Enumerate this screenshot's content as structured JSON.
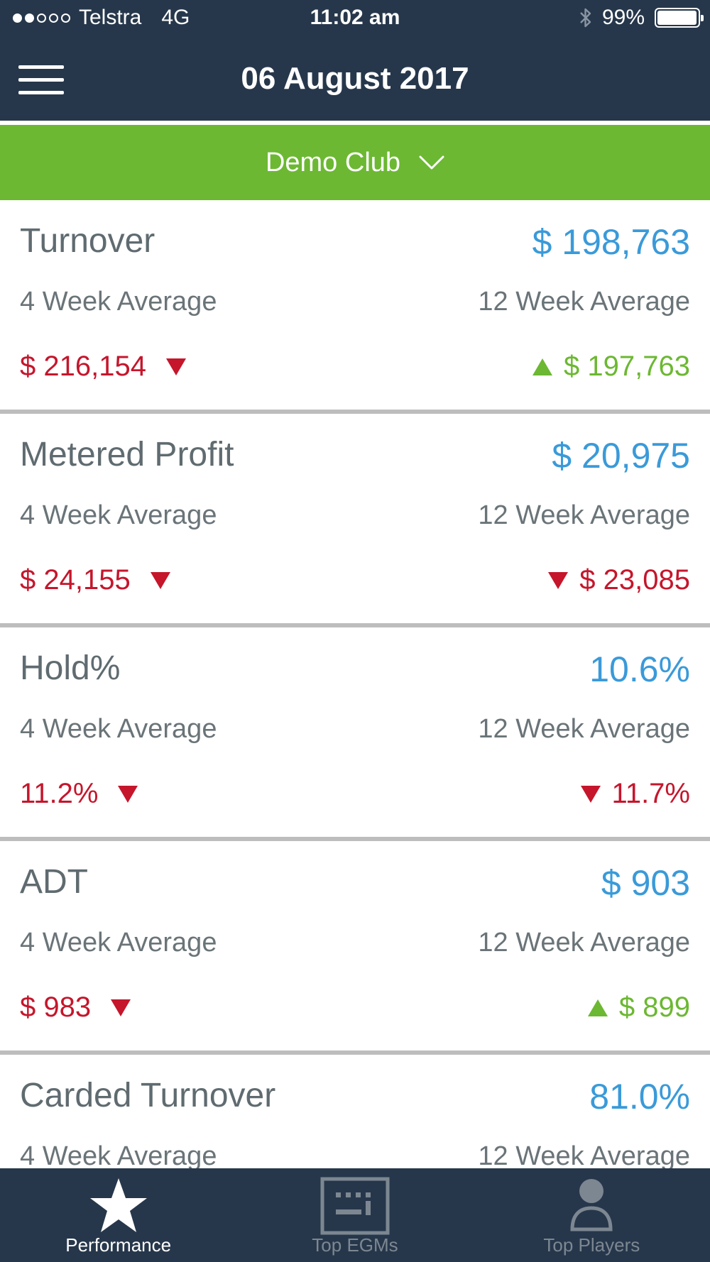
{
  "status_bar": {
    "carrier": "Telstra",
    "network": "4G",
    "time": "11:02 am",
    "battery": "99%",
    "battery_level": 0.99,
    "signal_bars": 2,
    "signal_total": 5
  },
  "nav": {
    "title": "06 August 2017"
  },
  "club_selector": {
    "label": "Demo Club"
  },
  "colors": {
    "header": "#27374b",
    "accent_green": "#6cb832",
    "value_blue": "#3a9ad9",
    "down_red": "#c5162c",
    "up_green": "#6cb832"
  },
  "metrics": [
    {
      "title": "Turnover",
      "value": "$ 198,763",
      "avg4_label": "4 Week Average",
      "avg4_value": "$ 216,154",
      "avg4_trend": "down",
      "avg12_label": "12 Week Average",
      "avg12_value": "$ 197,763",
      "avg12_trend": "up"
    },
    {
      "title": "Metered Profit",
      "value": "$ 20,975",
      "avg4_label": "4 Week Average",
      "avg4_value": "$ 24,155",
      "avg4_trend": "down",
      "avg12_label": "12 Week Average",
      "avg12_value": "$ 23,085",
      "avg12_trend": "down"
    },
    {
      "title": "Hold%",
      "value": "10.6%",
      "avg4_label": "4 Week Average",
      "avg4_value": "11.2%",
      "avg4_trend": "down",
      "avg12_label": "12 Week Average",
      "avg12_value": "11.7%",
      "avg12_trend": "down"
    },
    {
      "title": "ADT",
      "value": "$ 903",
      "avg4_label": "4 Week Average",
      "avg4_value": "$ 983",
      "avg4_trend": "down",
      "avg12_label": "12 Week Average",
      "avg12_value": "$ 899",
      "avg12_trend": "up"
    },
    {
      "title": "Carded Turnover",
      "value": "81.0%",
      "avg4_label": "4 Week Average",
      "avg4_value": "",
      "avg4_trend": "",
      "avg12_label": "12 Week Average",
      "avg12_value": "",
      "avg12_trend": ""
    }
  ],
  "tabs": [
    {
      "label": "Performance",
      "icon": "star-icon",
      "active": true
    },
    {
      "label": "Top EGMs",
      "icon": "keyboard-icon",
      "active": false
    },
    {
      "label": "Top Players",
      "icon": "person-icon",
      "active": false
    }
  ]
}
